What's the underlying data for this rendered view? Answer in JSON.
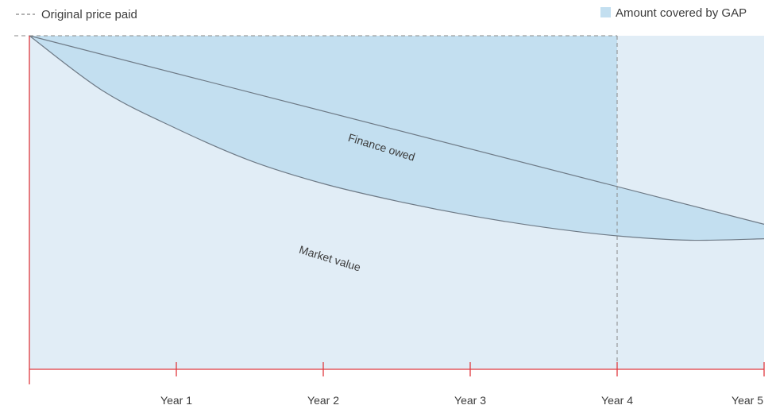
{
  "legend": {
    "original_price": "Original price paid",
    "gap": "Amount covered by GAP"
  },
  "chart_data": {
    "type": "area",
    "x": [
      0,
      0.5,
      1,
      1.5,
      2,
      2.5,
      3,
      3.5,
      4,
      4.5,
      5
    ],
    "categories": [
      "Year 1",
      "Year 2",
      "Year 3",
      "Year 4",
      "Year 5"
    ],
    "series": [
      {
        "name": "Finance owed",
        "values": [
          100,
          93.5,
          87,
          80.5,
          74,
          67.5,
          61,
          54.5,
          48,
          41.5,
          35
        ]
      },
      {
        "name": "Market value",
        "values": [
          100,
          81,
          68,
          57,
          49,
          43,
          38,
          34,
          31,
          29.5,
          30
        ]
      }
    ],
    "reference_line": {
      "name": "Original price paid",
      "value": 100,
      "style": "dashed"
    },
    "gap_end_year": 4,
    "ylim": [
      -15,
      100
    ],
    "xlim": [
      0,
      5
    ],
    "colors": {
      "gap_fill": "#c3dff0",
      "background_fill": "#e1edf6",
      "axis": "#e0393e",
      "curve": "#6e7a86",
      "dashed": "#888888"
    }
  }
}
